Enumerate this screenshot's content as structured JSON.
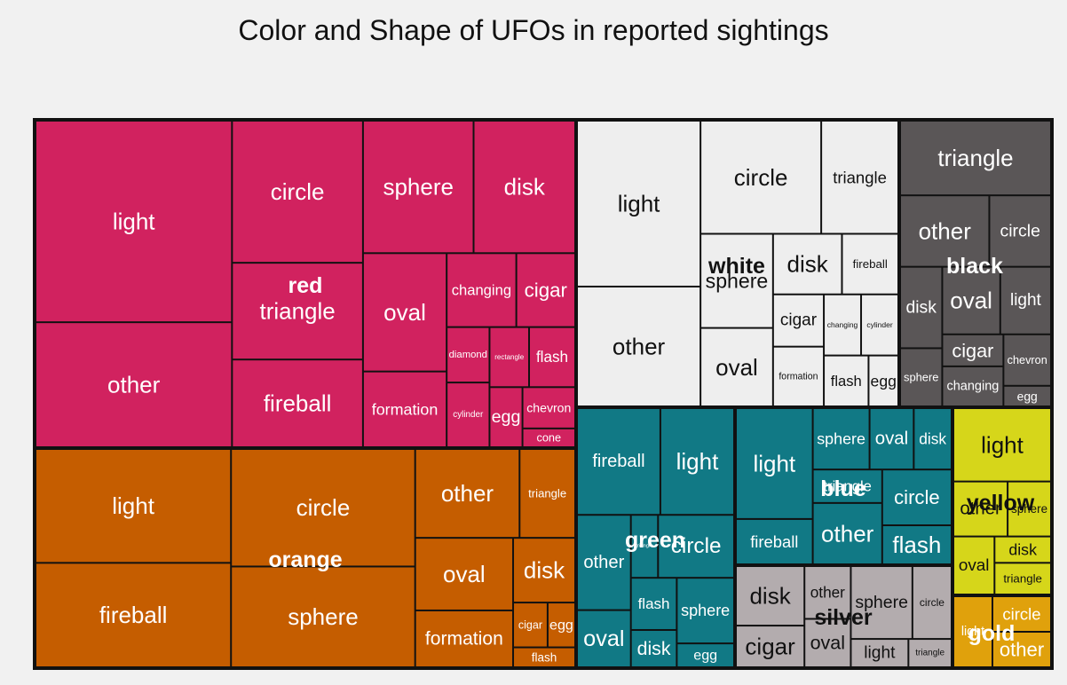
{
  "chart_data": {
    "type": "treemap",
    "title": "Color and Shape of UFOs in reported sightings",
    "groups": [
      {
        "name": "red",
        "color": "#d1225f",
        "items": [
          {
            "label": "light",
            "value": 1000
          },
          {
            "label": "other",
            "value": 620
          },
          {
            "label": "circle",
            "value": 470
          },
          {
            "label": "triangle",
            "value": 320
          },
          {
            "label": "fireball",
            "value": 290
          },
          {
            "label": "sphere",
            "value": 370
          },
          {
            "label": "disk",
            "value": 340
          },
          {
            "label": "oval",
            "value": 250
          },
          {
            "label": "formation",
            "value": 160
          },
          {
            "label": "changing",
            "value": 130
          },
          {
            "label": "cigar",
            "value": 110
          },
          {
            "label": "diamond",
            "value": 60
          },
          {
            "label": "cylinder",
            "value": 70
          },
          {
            "label": "rectangle",
            "value": 60
          },
          {
            "label": "flash",
            "value": 70
          },
          {
            "label": "egg",
            "value": 50
          },
          {
            "label": "chevron",
            "value": 55
          },
          {
            "label": "cone",
            "value": 25
          }
        ]
      },
      {
        "name": "orange",
        "color": "#c55d00",
        "items": [
          {
            "label": "light",
            "value": 720
          },
          {
            "label": "fireball",
            "value": 660
          },
          {
            "label": "circle",
            "value": 700
          },
          {
            "label": "sphere",
            "value": 600
          },
          {
            "label": "other",
            "value": 300
          },
          {
            "label": "triangle",
            "value": 160
          },
          {
            "label": "oval",
            "value": 230
          },
          {
            "label": "formation",
            "value": 180
          },
          {
            "label": "disk",
            "value": 130
          },
          {
            "label": "cigar",
            "value": 50
          },
          {
            "label": "egg",
            "value": 40
          },
          {
            "label": "flash",
            "value": 40
          }
        ]
      },
      {
        "name": "white",
        "color": "#eeeeee",
        "items": [
          {
            "label": "light",
            "value": 540
          },
          {
            "label": "other",
            "value": 390
          },
          {
            "label": "circle",
            "value": 360
          },
          {
            "label": "triangle",
            "value": 230
          },
          {
            "label": "sphere",
            "value": 180
          },
          {
            "label": "oval",
            "value": 150
          },
          {
            "label": "disk",
            "value": 110
          },
          {
            "label": "fireball",
            "value": 90
          },
          {
            "label": "cigar",
            "value": 70
          },
          {
            "label": "formation",
            "value": 80
          },
          {
            "label": "changing",
            "value": 60
          },
          {
            "label": "cylinder",
            "value": 60
          },
          {
            "label": "flash",
            "value": 60
          },
          {
            "label": "egg",
            "value": 40
          }
        ]
      },
      {
        "name": "black",
        "color": "#5a5657",
        "items": [
          {
            "label": "triangle",
            "value": 230
          },
          {
            "label": "other",
            "value": 130
          },
          {
            "label": "circle",
            "value": 90
          },
          {
            "label": "disk",
            "value": 70
          },
          {
            "label": "sphere",
            "value": 50
          },
          {
            "label": "oval",
            "value": 80
          },
          {
            "label": "light",
            "value": 70
          },
          {
            "label": "cigar",
            "value": 40
          },
          {
            "label": "changing",
            "value": 50
          },
          {
            "label": "chevron",
            "value": 50
          },
          {
            "label": "egg",
            "value": 20
          }
        ]
      },
      {
        "name": "green",
        "color": "#117985",
        "items": [
          {
            "label": "fireball",
            "value": 260
          },
          {
            "label": "light",
            "value": 230
          },
          {
            "label": "other",
            "value": 150
          },
          {
            "label": "oval",
            "value": 90
          },
          {
            "label": "triangle",
            "value": 50
          },
          {
            "label": "circle",
            "value": 140
          },
          {
            "label": "flash",
            "value": 70
          },
          {
            "label": "disk",
            "value": 50
          },
          {
            "label": "sphere",
            "value": 110
          },
          {
            "label": "egg",
            "value": 40
          }
        ]
      },
      {
        "name": "blue",
        "color": "#117985",
        "items": [
          {
            "label": "light",
            "value": 220
          },
          {
            "label": "fireball",
            "value": 90
          },
          {
            "label": "sphere",
            "value": 90
          },
          {
            "label": "oval",
            "value": 70
          },
          {
            "label": "disk",
            "value": 60
          },
          {
            "label": "triangle",
            "value": 60
          },
          {
            "label": "other",
            "value": 110
          },
          {
            "label": "circle",
            "value": 100
          },
          {
            "label": "flash",
            "value": 70
          }
        ]
      },
      {
        "name": "yellow",
        "color": "#d6d61a",
        "items": [
          {
            "label": "light",
            "value": 120
          },
          {
            "label": "other",
            "value": 50
          },
          {
            "label": "sphere",
            "value": 40
          },
          {
            "label": "oval",
            "value": 40
          },
          {
            "label": "disk",
            "value": 25
          },
          {
            "label": "triangle",
            "value": 30
          }
        ]
      },
      {
        "name": "silver",
        "color": "#b3acae",
        "items": [
          {
            "label": "disk",
            "value": 100
          },
          {
            "label": "cigar",
            "value": 70
          },
          {
            "label": "other",
            "value": 60
          },
          {
            "label": "oval",
            "value": 55
          },
          {
            "label": "sphere",
            "value": 110
          },
          {
            "label": "circle",
            "value": 70
          },
          {
            "label": "light",
            "value": 40
          },
          {
            "label": "triangle",
            "value": 30
          }
        ]
      },
      {
        "name": "gold",
        "color": "#e0a10c",
        "items": [
          {
            "label": "light",
            "value": 40
          },
          {
            "label": "circle",
            "value": 30
          },
          {
            "label": "other",
            "value": 30
          }
        ]
      }
    ]
  }
}
